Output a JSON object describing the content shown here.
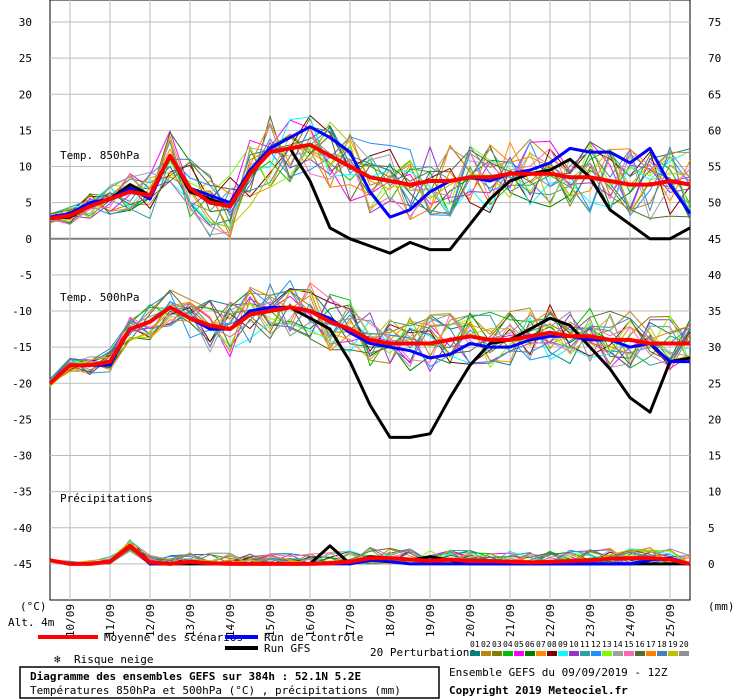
{
  "chart_data": {
    "type": "line",
    "title": "Diagramme des ensembles GEFS sur 384h : 52.1N 5.2E",
    "subtitle": "Températures 850hPa et 500hPa (°C) , précipitations (mm)",
    "run_info": "Ensemble GEFS du 09/09/2019 - 12Z",
    "copyright": "Copyright 2019 Meteociel.fr",
    "altitude": "Alt. 4m",
    "left_unit": "(°C)",
    "right_unit": "(mm)",
    "left_ticks": [
      "30",
      "25",
      "20",
      "15",
      "10",
      "5",
      "0",
      "-5",
      "-10",
      "-15",
      "-20",
      "-25",
      "-30",
      "-35",
      "-40",
      "-45"
    ],
    "right_ticks": [
      "75",
      "70",
      "65",
      "60",
      "55",
      "50",
      "45",
      "40",
      "35",
      "30",
      "25",
      "20",
      "15",
      "10",
      "5",
      "0"
    ],
    "dates": [
      "10/09",
      "11/09",
      "12/09",
      "13/09",
      "14/09",
      "15/09",
      "16/09",
      "17/09",
      "18/09",
      "19/09",
      "20/09",
      "21/09",
      "22/09",
      "23/09",
      "24/09",
      "25/09"
    ],
    "section_labels": {
      "t850": "Temp. 850hPa",
      "t500": "Temp. 500hPa",
      "precip": "Précipitations"
    },
    "ylim_temperature": [
      -50,
      30
    ],
    "ylim_precip": [
      0,
      75
    ],
    "x_days": [
      9.5,
      25.5
    ],
    "legend": {
      "mean": "Moyenne des scénarios",
      "control": "Run de contrôle",
      "gfs": "Run GFS",
      "snow": "Risque neige",
      "perturbations": "20 Perturbations",
      "perturbation_ids": [
        "01",
        "02",
        "03",
        "04",
        "05",
        "06",
        "07",
        "08",
        "09",
        "10",
        "11",
        "12",
        "13",
        "14",
        "15",
        "16",
        "17",
        "18",
        "19",
        "20"
      ]
    },
    "colors": {
      "mean": "#ff0000",
      "control": "#0000ff",
      "gfs": "#000000",
      "snow": "#3399ff",
      "perturbations": [
        "#008080",
        "#b8860b",
        "#808000",
        "#00c000",
        "#ff00ff",
        "#008000",
        "#ff8c00",
        "#800000",
        "#00ffff",
        "#9932cc",
        "#2f9f9f",
        "#1e90ff",
        "#7cfc00",
        "#a0a0a0",
        "#ff69b4",
        "#556b2f",
        "#ff8000",
        "#4682b4",
        "#c0c000",
        "#909090"
      ]
    },
    "series": [
      {
        "key": "t850_mean",
        "name": "Moyenne des scénarios",
        "x": [
          9.5,
          10,
          10.5,
          11,
          11.5,
          12,
          12.5,
          13,
          13.5,
          14,
          14.5,
          15,
          15.5,
          16,
          16.5,
          17,
          17.5,
          18,
          18.5,
          19,
          19.5,
          20,
          20.5,
          21,
          21.5,
          22,
          22.5,
          23,
          23.5,
          24,
          24.5,
          25,
          25.5
        ],
        "y": [
          2.8,
          3.2,
          4.5,
          5.5,
          6.5,
          6.0,
          11.5,
          7.0,
          5.0,
          4.5,
          9.0,
          12.0,
          12.5,
          13.0,
          11.5,
          10.0,
          8.5,
          8.0,
          7.5,
          8.0,
          8.0,
          8.5,
          8.5,
          9.0,
          9.0,
          9.0,
          8.5,
          8.5,
          8.0,
          7.5,
          7.5,
          8.0,
          7.5
        ]
      },
      {
        "key": "t850_control",
        "name": "Run de contrôle",
        "x": [
          9.5,
          10,
          10.5,
          11,
          11.5,
          12,
          12.5,
          13,
          13.5,
          14,
          14.5,
          15,
          15.5,
          16,
          16.5,
          17,
          17.5,
          18,
          18.5,
          19,
          19.5,
          20,
          20.5,
          21,
          21.5,
          22,
          22.5,
          23,
          23.5,
          24,
          24.5,
          25,
          25.5
        ],
        "y": [
          3.0,
          3.5,
          5.0,
          5.5,
          7.0,
          5.5,
          11.5,
          7.0,
          6.0,
          5.0,
          9.5,
          12.5,
          14.0,
          15.5,
          14.0,
          12.0,
          6.5,
          3.0,
          4.0,
          6.5,
          8.0,
          8.5,
          8.0,
          9.0,
          9.5,
          10.5,
          12.5,
          12.0,
          12.0,
          10.5,
          12.5,
          7.5,
          3.5
        ]
      },
      {
        "key": "t850_gfs",
        "name": "Run GFS",
        "x": [
          9.5,
          10,
          10.5,
          11,
          11.5,
          12,
          12.5,
          13,
          13.5,
          14,
          14.5,
          15,
          15.5,
          16,
          16.5,
          17,
          17.5,
          18,
          18.5,
          19,
          19.5,
          20,
          20.5,
          21,
          21.5,
          22,
          22.5,
          23,
          23.5,
          24,
          24.5,
          25,
          25.5
        ],
        "y": [
          2.8,
          3.0,
          4.5,
          5.5,
          7.5,
          6.0,
          11.5,
          6.5,
          5.5,
          4.5,
          9.0,
          12.0,
          12.5,
          8.0,
          1.5,
          0,
          -1.0,
          -2.0,
          -0.5,
          -1.5,
          -1.5,
          2.0,
          5.5,
          8.0,
          9.0,
          9.5,
          11.0,
          8.5,
          4.0,
          2.0,
          0.0,
          0.0,
          1.5
        ]
      },
      {
        "key": "t500_mean",
        "name": "Moyenne des scénarios",
        "x": [
          9.5,
          10,
          10.5,
          11,
          11.5,
          12,
          12.5,
          13,
          13.5,
          14,
          14.5,
          15,
          15.5,
          16,
          16.5,
          17,
          17.5,
          18,
          18.5,
          19,
          19.5,
          20,
          20.5,
          21,
          21.5,
          22,
          22.5,
          23,
          23.5,
          24,
          24.5,
          25,
          25.5
        ],
        "y": [
          -20,
          -17.5,
          -17.5,
          -17,
          -12.5,
          -11.5,
          -9.5,
          -11,
          -12,
          -12.5,
          -10.5,
          -10,
          -9.5,
          -10,
          -11.5,
          -12.5,
          -14,
          -14.5,
          -14.5,
          -14.5,
          -14,
          -13.5,
          -14,
          -14,
          -13.5,
          -13,
          -13.5,
          -13.5,
          -14,
          -14,
          -14.5,
          -14.5,
          -14.5
        ]
      },
      {
        "key": "t500_control",
        "name": "Run de contrôle",
        "x": [
          9.5,
          10,
          10.5,
          11,
          11.5,
          12,
          12.5,
          13,
          13.5,
          14,
          14.5,
          15,
          15.5,
          16,
          16.5,
          17,
          17.5,
          18,
          18.5,
          19,
          19.5,
          20,
          20.5,
          21,
          21.5,
          22,
          22.5,
          23,
          23.5,
          24,
          24.5,
          25,
          25.5
        ],
        "y": [
          -20,
          -17.5,
          -17.5,
          -17.5,
          -12.5,
          -11.5,
          -9.5,
          -11,
          -12.5,
          -12.5,
          -10,
          -9.5,
          -9.5,
          -10,
          -11,
          -13,
          -14.5,
          -15,
          -15.5,
          -16.5,
          -16,
          -14.5,
          -15,
          -15,
          -14,
          -13.5,
          -13.5,
          -14,
          -14,
          -15,
          -14.5,
          -17,
          -17
        ]
      },
      {
        "key": "t500_gfs",
        "name": "Run GFS",
        "x": [
          9.5,
          10,
          10.5,
          11,
          11.5,
          12,
          12.5,
          13,
          13.5,
          14,
          14.5,
          15,
          15.5,
          16,
          16.5,
          17,
          17.5,
          18,
          18.5,
          19,
          19.5,
          20,
          20.5,
          21,
          21.5,
          22,
          22.5,
          23,
          23.5,
          24,
          24.5,
          25,
          25.5
        ],
        "y": [
          -20,
          -17.5,
          -17.5,
          -17,
          -12.5,
          -11.5,
          -9.5,
          -11,
          -12,
          -12.5,
          -10.5,
          -10,
          -9.5,
          -11,
          -12.5,
          -17,
          -23,
          -27.5,
          -27.5,
          -27,
          -22,
          -17.5,
          -14.5,
          -14,
          -12.5,
          -11,
          -12,
          -15,
          -18,
          -22,
          -24,
          -17,
          -16.5
        ]
      },
      {
        "key": "precip_mean",
        "name": "Moyenne des scénarios",
        "x": [
          9.5,
          10,
          10.5,
          11,
          11.5,
          12,
          12.5,
          13,
          13.5,
          14,
          14.5,
          15,
          15.5,
          16,
          16.5,
          17,
          17.5,
          18,
          18.5,
          19,
          19.5,
          20,
          20.5,
          21,
          21.5,
          22,
          22.5,
          23,
          23.5,
          24,
          24.5,
          25,
          25.5
        ],
        "y": [
          0.5,
          0,
          0,
          0.3,
          2.5,
          0.2,
          0,
          0.3,
          0.1,
          0,
          0,
          0,
          0,
          0,
          0.1,
          0.3,
          0.8,
          0.8,
          0.6,
          0.4,
          0.6,
          0.4,
          0.4,
          0.3,
          0.2,
          0.3,
          0.4,
          0.5,
          0.7,
          0.8,
          0.8,
          0.6,
          0
        ]
      },
      {
        "key": "precip_control",
        "name": "Run de contrôle",
        "x": [
          9.5,
          10,
          10.5,
          11,
          11.5,
          12,
          12.5,
          13,
          13.5,
          14,
          14.5,
          15,
          15.5,
          16,
          16.5,
          17,
          17.5,
          18,
          18.5,
          19,
          19.5,
          20,
          20.5,
          21,
          21.5,
          22,
          22.5,
          23,
          23.5,
          24,
          24.5,
          25,
          25.5
        ],
        "y": [
          0.5,
          0,
          0,
          0.3,
          2.5,
          0,
          0,
          0.3,
          0,
          0,
          0,
          0,
          0,
          0,
          0,
          0,
          0.5,
          0.3,
          0,
          0,
          0,
          0,
          0,
          0,
          0,
          0,
          0,
          0,
          0,
          0,
          0.5,
          0.8,
          0
        ]
      },
      {
        "key": "precip_gfs",
        "name": "Run GFS",
        "x": [
          9.5,
          10,
          10.5,
          11,
          11.5,
          12,
          12.5,
          13,
          13.5,
          14,
          14.5,
          15,
          15.5,
          16,
          16.5,
          17,
          17.5,
          18,
          18.5,
          19,
          19.5,
          20,
          20.5,
          21,
          21.5,
          22,
          22.5,
          23,
          23.5,
          24,
          24.5,
          25,
          25.5
        ],
        "y": [
          0.5,
          0,
          0,
          0.3,
          2.5,
          0,
          0,
          0,
          0,
          0,
          0,
          0,
          0,
          0,
          2.5,
          0,
          1.0,
          0.8,
          0.5,
          1.0,
          0.5,
          0,
          0,
          0,
          0,
          0,
          0,
          0,
          0,
          0,
          0,
          0,
          0
        ]
      }
    ]
  }
}
